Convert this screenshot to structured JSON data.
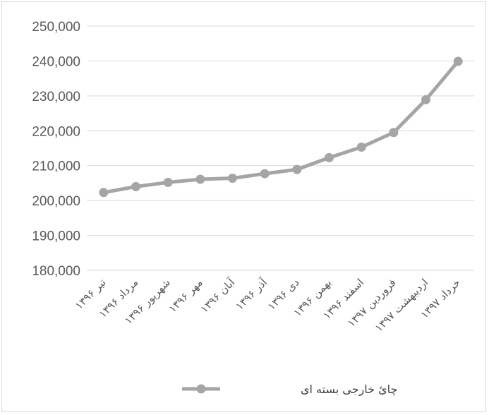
{
  "chart_data": {
    "type": "line",
    "title": "",
    "xlabel": "",
    "ylabel": "",
    "categories": [
      "تیر ۱۳۹۶",
      "مرداد ۱۳۹۶",
      "شهریور ۱۳۹۶",
      "مهر ۱۳۹۶",
      "آبان ۱۳۹۶",
      "آذر ۱۳۹۶",
      "دی ۱۳۹۶",
      "بهمن ۱۳۹۶",
      "اسفند ۱۳۹۶",
      "فروردین ۱۳۹۷",
      "اردیبهشت ۱۳۹۷",
      "خرداد ۱۳۹۷"
    ],
    "series": [
      {
        "name": "چائ خارجی بسته ای",
        "values": [
          202300,
          204000,
          205200,
          206100,
          206400,
          207700,
          208900,
          212300,
          215300,
          219500,
          228900,
          239900
        ]
      }
    ],
    "ylim": [
      180000,
      250000
    ],
    "yticks": [
      180000,
      190000,
      200000,
      210000,
      220000,
      230000,
      240000,
      250000
    ],
    "ytick_labels": [
      "180,000",
      "190,000",
      "200,000",
      "210,000",
      "220,000",
      "230,000",
      "240,000",
      "250,000"
    ],
    "grid": true,
    "legend_position": "bottom",
    "colors": {
      "series": "#a5a5a5",
      "grid": "#d9d9d9",
      "text": "#595959"
    }
  }
}
